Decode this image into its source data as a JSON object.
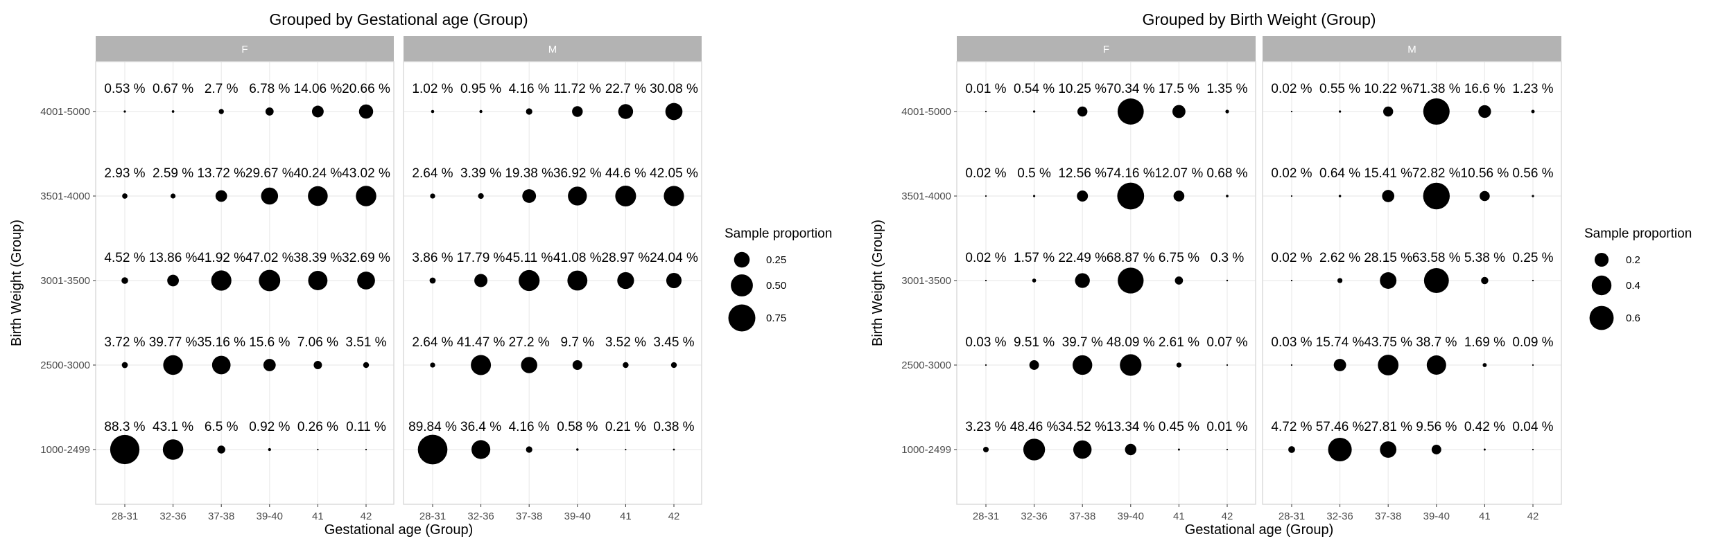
{
  "chart_data": [
    {
      "type": "scatter",
      "title": "Grouped by Gestational age (Group)",
      "xlabel": "Gestational age (Group)",
      "ylabel": "Birth Weight (Group)",
      "x_categories": [
        "28-31",
        "32-36",
        "37-38",
        "39-40",
        "41",
        "42"
      ],
      "y_categories": [
        "1000-2499",
        "2500-3000",
        "3001-3500",
        "3501-4000",
        "4001-5000"
      ],
      "value_unit": "%",
      "facets": [
        {
          "name": "F",
          "rows": {
            "4001-5000": [
              0.53,
              0.67,
              2.7,
              6.78,
              14.06,
              20.66
            ],
            "3501-4000": [
              2.93,
              2.59,
              13.72,
              29.67,
              40.24,
              43.02
            ],
            "3001-3500": [
              4.52,
              13.86,
              41.92,
              47.02,
              38.39,
              32.69
            ],
            "2500-3000": [
              3.72,
              39.77,
              35.16,
              15.6,
              7.06,
              3.51
            ],
            "1000-2499": [
              88.3,
              43.1,
              6.5,
              0.92,
              0.26,
              0.11
            ]
          }
        },
        {
          "name": "M",
          "rows": {
            "4001-5000": [
              1.02,
              0.95,
              4.16,
              11.72,
              22.7,
              30.08
            ],
            "3501-4000": [
              2.64,
              3.39,
              19.38,
              36.92,
              44.6,
              42.05
            ],
            "3001-3500": [
              3.86,
              17.79,
              45.11,
              41.08,
              28.97,
              24.04
            ],
            "2500-3000": [
              2.64,
              41.47,
              27.2,
              9.7,
              3.52,
              3.45
            ],
            "1000-2499": [
              89.84,
              36.4,
              4.16,
              0.58,
              0.21,
              0.38
            ]
          }
        }
      ],
      "legend": {
        "title": "Sample proportion",
        "entries": [
          0.25,
          0.5,
          0.75
        ],
        "entry_labels": [
          "0.25",
          "0.50",
          "0.75"
        ],
        "position": "right"
      },
      "grid": true
    },
    {
      "type": "scatter",
      "title": "Grouped by Birth Weight (Group)",
      "xlabel": "Gestational age (Group)",
      "ylabel": "Birth Weight (Group)",
      "x_categories": [
        "28-31",
        "32-36",
        "37-38",
        "39-40",
        "41",
        "42"
      ],
      "y_categories": [
        "1000-2499",
        "2500-3000",
        "3001-3500",
        "3501-4000",
        "4001-5000"
      ],
      "value_unit": "%",
      "facets": [
        {
          "name": "F",
          "rows": {
            "4001-5000": [
              0.01,
              0.54,
              10.25,
              70.34,
              17.5,
              1.35
            ],
            "3501-4000": [
              0.02,
              0.5,
              12.56,
              74.16,
              12.07,
              0.68
            ],
            "3001-3500": [
              0.02,
              1.57,
              22.49,
              68.87,
              6.75,
              0.3
            ],
            "2500-3000": [
              0.03,
              9.51,
              39.7,
              48.09,
              2.61,
              0.07
            ],
            "1000-2499": [
              3.23,
              48.46,
              34.52,
              13.34,
              0.45,
              0.01
            ]
          }
        },
        {
          "name": "M",
          "rows": {
            "4001-5000": [
              0.02,
              0.55,
              10.22,
              71.38,
              16.6,
              1.23
            ],
            "3501-4000": [
              0.02,
              0.64,
              15.41,
              72.82,
              10.56,
              0.56
            ],
            "3001-3500": [
              0.02,
              2.62,
              28.15,
              63.58,
              5.38,
              0.25
            ],
            "2500-3000": [
              0.03,
              15.74,
              43.75,
              38.7,
              1.69,
              0.09
            ],
            "1000-2499": [
              4.72,
              57.46,
              27.81,
              9.56,
              0.42,
              0.04
            ]
          }
        }
      ],
      "legend": {
        "title": "Sample proportion",
        "entries": [
          0.2,
          0.4,
          0.6
        ],
        "entry_labels": [
          "0.2",
          "0.4",
          "0.6"
        ],
        "position": "right"
      },
      "grid": true
    }
  ],
  "colors": {
    "point": "#000000",
    "strip_background": "#b3b3b3",
    "strip_text": "#ffffff",
    "panel_border": "#d9d9d9",
    "grid": "#ebebeb"
  }
}
